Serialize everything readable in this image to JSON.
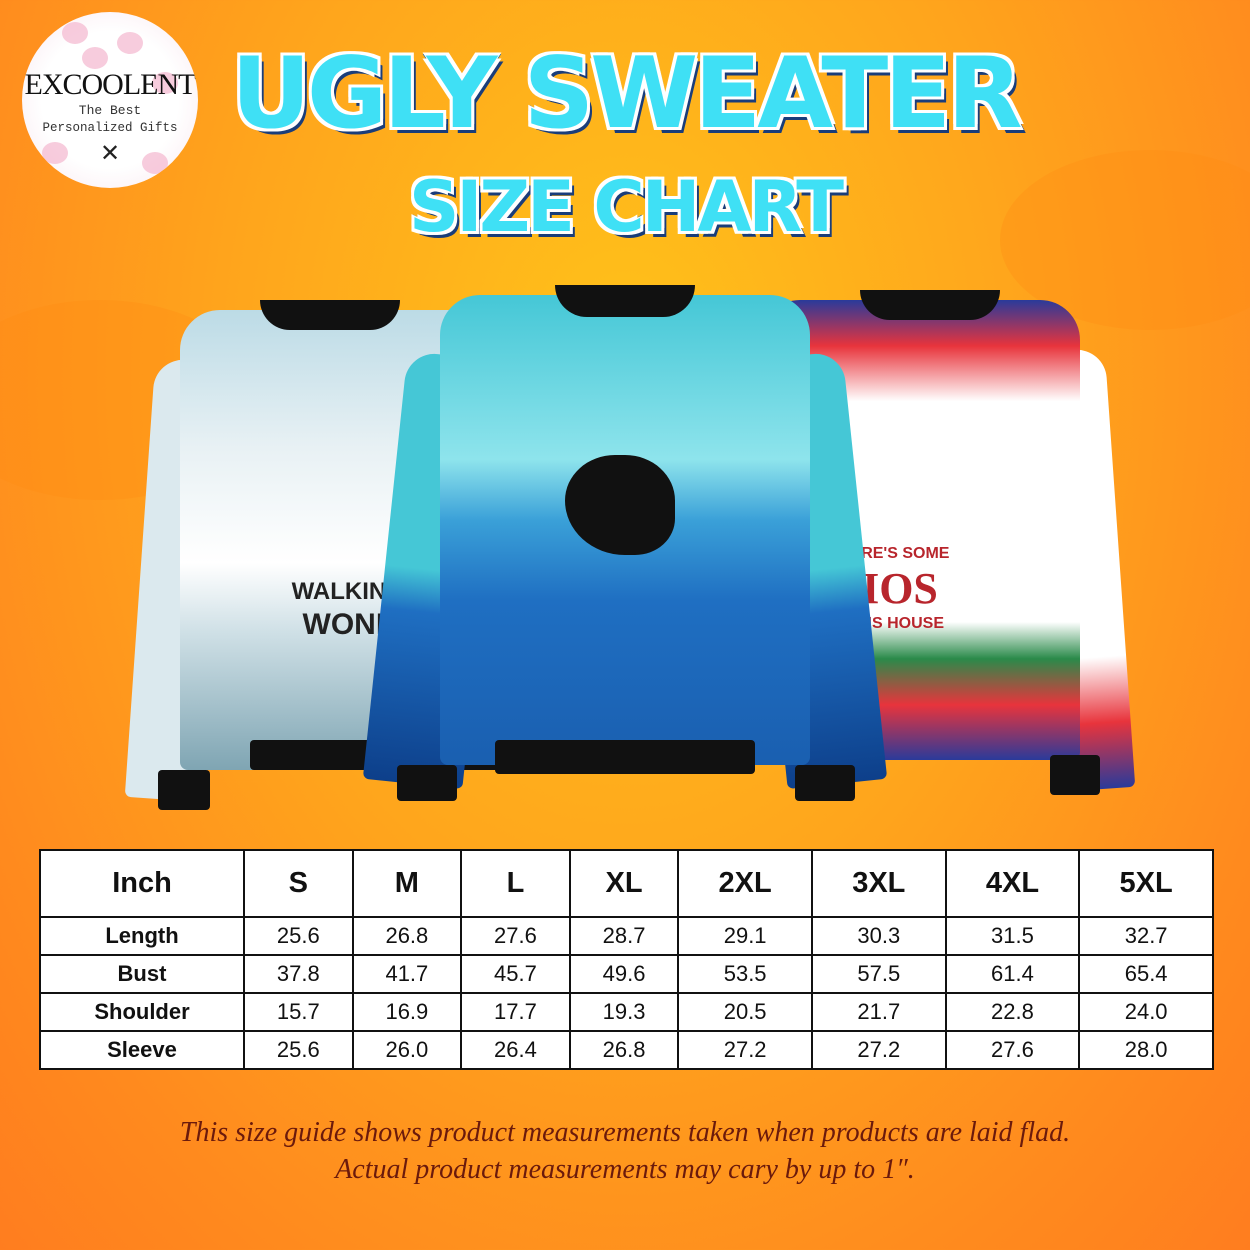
{
  "logo": {
    "brand": "EXCOOLENT",
    "tagline_1": "The Best",
    "tagline_2": "Personalized Gifts",
    "icon": "crossed-arrows-icon"
  },
  "title": {
    "line_1": "UGLY SWEATER",
    "line_2": "SIZE CHART"
  },
  "sweaters": [
    {
      "print_text_1": "WALKIN IN A W",
      "print_text_2": "WONDERL",
      "colors": [
        "#cfe6ee",
        "#6f8e9c"
      ]
    },
    {
      "print_text_1": "",
      "print_text_2": "",
      "colors": [
        "#45c7d6",
        "#1f6fc2"
      ]
    },
    {
      "print_text_1": "ERE'S SOME",
      "print_text_2": "IOS",
      "print_text_3": "HIS HOUSE",
      "colors": [
        "#ffffff",
        "#e8343c"
      ]
    }
  ],
  "table": {
    "unit": "Inch",
    "sizes": [
      "S",
      "M",
      "L",
      "XL",
      "2XL",
      "3XL",
      "4XL",
      "5XL"
    ],
    "rows": [
      {
        "label": "Length",
        "values": [
          "25.6",
          "26.8",
          "27.6",
          "28.7",
          "29.1",
          "30.3",
          "31.5",
          "32.7"
        ]
      },
      {
        "label": "Bust",
        "values": [
          "37.8",
          "41.7",
          "45.7",
          "49.6",
          "53.5",
          "57.5",
          "61.4",
          "65.4"
        ]
      },
      {
        "label": "Shoulder",
        "values": [
          "15.7",
          "16.9",
          "17.7",
          "19.3",
          "20.5",
          "21.7",
          "22.8",
          "24.0"
        ]
      },
      {
        "label": "Sleeve",
        "values": [
          "25.6",
          "26.0",
          "26.4",
          "26.8",
          "27.2",
          "27.2",
          "27.6",
          "28.0"
        ]
      }
    ]
  },
  "footer": {
    "line_1": "This size guide shows product measurements taken when products are laid flad.",
    "line_2": "Actual product measurements may cary by up to 1″."
  }
}
